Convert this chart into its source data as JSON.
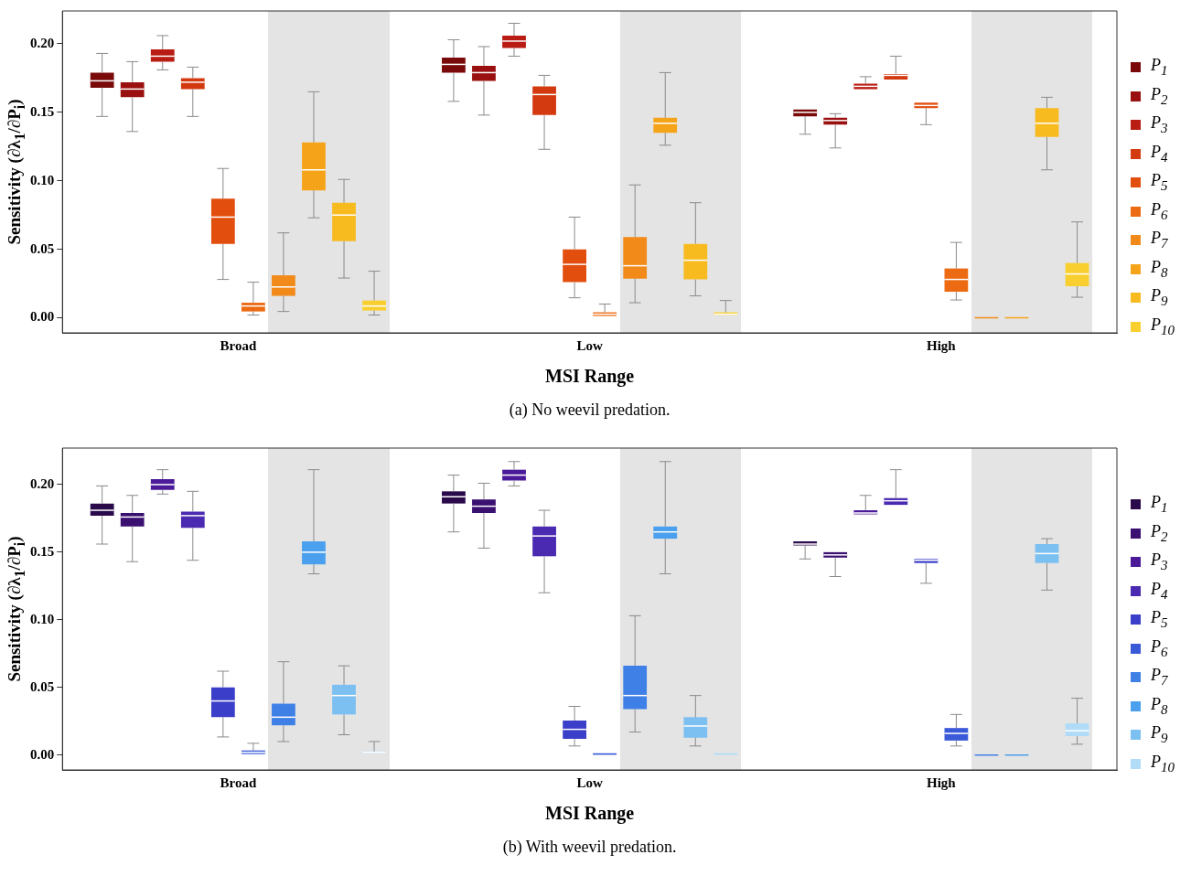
{
  "chart_data": [
    {
      "type": "box",
      "categories": [
        "Broad",
        "Low",
        "High"
      ],
      "xlabel": "MSI Range",
      "ylabel": "Sensitivity (∂λ$_{1}$/∂P$_{i}$)",
      "ylim": [
        -0.011,
        0.224
      ],
      "yticks": [
        {
          "value": 0,
          "label": "0.00"
        },
        {
          "value": 0.05,
          "label": "0.05"
        },
        {
          "value": 0.1,
          "label": "0.10"
        },
        {
          "value": 0.15,
          "label": "0.15"
        },
        {
          "value": 0.2,
          "label": "0.20"
        }
      ],
      "grid": false,
      "legend": "right",
      "annotations": [
        "(a) No weevil predation."
      ],
      "series": [
        {
          "name": "P$_{1}$",
          "color": "#7a0a0a",
          "boxes": [
            {
              "low": 0.147,
              "q1": 0.168,
              "median": 0.173,
              "q3": 0.179,
              "high": 0.193
            },
            {
              "low": 0.158,
              "q1": 0.179,
              "median": 0.185,
              "q3": 0.19,
              "high": 0.203
            },
            {
              "low": 0.134,
              "q1": 0.147,
              "median": 0.15,
              "q3": 0.152,
              "high": 0.152
            }
          ]
        },
        {
          "name": "P$_{2}$",
          "color": "#9a1010",
          "boxes": [
            {
              "low": 0.136,
              "q1": 0.161,
              "median": 0.167,
              "q3": 0.172,
              "high": 0.187
            },
            {
              "low": 0.148,
              "q1": 0.173,
              "median": 0.179,
              "q3": 0.184,
              "high": 0.198
            },
            {
              "low": 0.124,
              "q1": 0.141,
              "median": 0.144,
              "q3": 0.146,
              "high": 0.149
            }
          ]
        },
        {
          "name": "P$_{3}$",
          "color": "#b81c12",
          "boxes": [
            {
              "low": 0.181,
              "q1": 0.187,
              "median": 0.191,
              "q3": 0.196,
              "high": 0.206
            },
            {
              "low": 0.191,
              "q1": 0.197,
              "median": 0.202,
              "q3": 0.206,
              "high": 0.215
            },
            {
              "low": 0.167,
              "q1": 0.167,
              "median": 0.169,
              "q3": 0.171,
              "high": 0.176
            }
          ]
        },
        {
          "name": "P$_{4}$",
          "color": "#d33a10",
          "boxes": [
            {
              "low": 0.147,
              "q1": 0.167,
              "median": 0.172,
              "q3": 0.175,
              "high": 0.183
            },
            {
              "low": 0.123,
              "q1": 0.148,
              "median": 0.163,
              "q3": 0.169,
              "high": 0.177
            },
            {
              "low": 0.173,
              "q1": 0.174,
              "median": 0.177,
              "q3": 0.178,
              "high": 0.191
            }
          ]
        },
        {
          "name": "P$_{5}$",
          "color": "#e24e0e",
          "boxes": [
            {
              "low": 0.028,
              "q1": 0.054,
              "median": 0.0735,
              "q3": 0.087,
              "high": 0.109
            },
            {
              "low": 0.0146,
              "q1": 0.026,
              "median": 0.039,
              "q3": 0.05,
              "high": 0.0735
            },
            {
              "low": 0.141,
              "q1": 0.153,
              "median": 0.155,
              "q3": 0.157,
              "high": 0.158
            }
          ]
        },
        {
          "name": "P$_{6}$",
          "color": "#ec6a12",
          "boxes": [
            {
              "low": 0.002,
              "q1": 0.0046,
              "median": 0.0086,
              "q3": 0.011,
              "high": 0.026
            },
            {
              "low": 0.0013,
              "q1": 0.0013,
              "median": 0.0026,
              "q3": 0.004,
              "high": 0.01
            },
            {
              "low": 0.013,
              "q1": 0.019,
              "median": 0.028,
              "q3": 0.036,
              "high": 0.055
            }
          ]
        },
        {
          "name": "P$_{7}$",
          "color": "#f28a1a",
          "boxes": [
            {
              "low": 0.0046,
              "q1": 0.016,
              "median": 0.0225,
              "q3": 0.031,
              "high": 0.062
            },
            {
              "low": 0.011,
              "q1": 0.0285,
              "median": 0.038,
              "q3": 0.059,
              "high": 0.097
            },
            {
              "low": 0,
              "q1": 0,
              "median": 0,
              "q3": 0,
              "high": 0
            }
          ]
        },
        {
          "name": "P$_{8}$",
          "color": "#f5a41a",
          "boxes": [
            {
              "low": 0.073,
              "q1": 0.093,
              "median": 0.108,
              "q3": 0.128,
              "high": 0.165
            },
            {
              "low": 0.126,
              "q1": 0.135,
              "median": 0.142,
              "q3": 0.146,
              "high": 0.179
            },
            {
              "low": 0,
              "q1": 0,
              "median": 0,
              "q3": 0,
              "high": 0
            }
          ]
        },
        {
          "name": "P$_{9}$",
          "color": "#f7bb20",
          "boxes": [
            {
              "low": 0.029,
              "q1": 0.056,
              "median": 0.075,
              "q3": 0.084,
              "high": 0.101
            },
            {
              "low": 0.016,
              "q1": 0.028,
              "median": 0.042,
              "q3": 0.054,
              "high": 0.084
            },
            {
              "low": 0.108,
              "q1": 0.132,
              "median": 0.142,
              "q3": 0.153,
              "high": 0.161
            }
          ]
        },
        {
          "name": "P$_{10}$",
          "color": "#f9cf30",
          "boxes": [
            {
              "low": 0.002,
              "q1": 0.0053,
              "median": 0.0086,
              "q3": 0.0126,
              "high": 0.034
            },
            {
              "low": 0.002,
              "q1": 0.002,
              "median": 0.0026,
              "q3": 0.004,
              "high": 0.0126
            },
            {
              "low": 0.015,
              "q1": 0.023,
              "median": 0.032,
              "q3": 0.04,
              "high": 0.07
            }
          ]
        }
      ]
    },
    {
      "type": "box",
      "categories": [
        "Broad",
        "Low",
        "High"
      ],
      "xlabel": "MSI Range",
      "ylabel": "Sensitivity (∂λ$_{1}$/∂P$_{i}$)",
      "ylim": [
        -0.011,
        0.227
      ],
      "yticks": [
        {
          "value": 0,
          "label": "0.00"
        },
        {
          "value": 0.05,
          "label": "0.05"
        },
        {
          "value": 0.1,
          "label": "0.10"
        },
        {
          "value": 0.15,
          "label": "0.15"
        },
        {
          "value": 0.2,
          "label": "0.20"
        }
      ],
      "grid": false,
      "legend": "right",
      "annotations": [
        "(b) With weevil predation."
      ],
      "series": [
        {
          "name": "P$_{1}$",
          "color": "#2a0a4a",
          "boxes": [
            {
              "low": 0.156,
              "q1": 0.177,
              "median": 0.181,
              "q3": 0.186,
              "high": 0.199
            },
            {
              "low": 0.165,
              "q1": 0.186,
              "median": 0.191,
              "q3": 0.195,
              "high": 0.207
            },
            {
              "low": 0.145,
              "q1": 0.155,
              "median": 0.156,
              "q3": 0.158,
              "high": 0.159
            }
          ]
        },
        {
          "name": "P$_{2}$",
          "color": "#3a1070",
          "boxes": [
            {
              "low": 0.143,
              "q1": 0.169,
              "median": 0.176,
              "q3": 0.179,
              "high": 0.192
            },
            {
              "low": 0.153,
              "q1": 0.179,
              "median": 0.184,
              "q3": 0.189,
              "high": 0.201
            },
            {
              "low": 0.132,
              "q1": 0.146,
              "median": 0.148,
              "q3": 0.15,
              "high": 0.15
            }
          ]
        },
        {
          "name": "P$_{3}$",
          "color": "#4a1a98",
          "boxes": [
            {
              "low": 0.193,
              "q1": 0.196,
              "median": 0.2,
              "q3": 0.204,
              "high": 0.211
            },
            {
              "low": 0.199,
              "q1": 0.203,
              "median": 0.207,
              "q3": 0.211,
              "high": 0.217
            },
            {
              "low": 0.178,
              "q1": 0.178,
              "median": 0.179,
              "q3": 0.181,
              "high": 0.192
            }
          ]
        },
        {
          "name": "P$_{4}$",
          "color": "#4a2ab0",
          "boxes": [
            {
              "low": 0.144,
              "q1": 0.168,
              "median": 0.177,
              "q3": 0.18,
              "high": 0.195
            },
            {
              "low": 0.12,
              "q1": 0.147,
              "median": 0.162,
              "q3": 0.169,
              "high": 0.181
            },
            {
              "low": 0.184,
              "q1": 0.185,
              "median": 0.188,
              "q3": 0.19,
              "high": 0.211
            }
          ]
        },
        {
          "name": "P$_{5}$",
          "color": "#3b3ec8",
          "boxes": [
            {
              "low": 0.0134,
              "q1": 0.028,
              "median": 0.04,
              "q3": 0.05,
              "high": 0.062
            },
            {
              "low": 0.0067,
              "q1": 0.012,
              "median": 0.019,
              "q3": 0.0255,
              "high": 0.036
            },
            {
              "low": 0.127,
              "q1": 0.142,
              "median": 0.144,
              "q3": 0.145,
              "high": 0.146
            }
          ]
        },
        {
          "name": "P$_{6}$",
          "color": "#3a5ad8",
          "boxes": [
            {
              "low": 0,
              "q1": 0.0007,
              "median": 0.002,
              "q3": 0.0034,
              "high": 0.0087
            },
            {
              "low": 0,
              "q1": 0.0007,
              "median": 0.0007,
              "q3": 0.0013,
              "high": 0.002
            },
            {
              "low": 0.0067,
              "q1": 0.0107,
              "median": 0.016,
              "q3": 0.02,
              "high": 0.03
            }
          ]
        },
        {
          "name": "P$_{7}$",
          "color": "#3f80e6",
          "boxes": [
            {
              "low": 0.01,
              "q1": 0.022,
              "median": 0.028,
              "q3": 0.038,
              "high": 0.069
            },
            {
              "low": 0.017,
              "q1": 0.034,
              "median": 0.044,
              "q3": 0.066,
              "high": 0.103
            },
            {
              "low": 0,
              "q1": 0,
              "median": 0,
              "q3": 0,
              "high": 0
            }
          ]
        },
        {
          "name": "P$_{8}$",
          "color": "#4aa0ee",
          "boxes": [
            {
              "low": 0.134,
              "q1": 0.141,
              "median": 0.15,
              "q3": 0.158,
              "high": 0.211
            },
            {
              "low": 0.134,
              "q1": 0.16,
              "median": 0.165,
              "q3": 0.169,
              "high": 0.217
            },
            {
              "low": 0,
              "q1": 0,
              "median": 0,
              "q3": 0,
              "high": 0
            }
          ]
        },
        {
          "name": "P$_{9}$",
          "color": "#7cc0f2",
          "boxes": [
            {
              "low": 0.015,
              "q1": 0.03,
              "median": 0.044,
              "q3": 0.052,
              "high": 0.066
            },
            {
              "low": 0.0067,
              "q1": 0.0128,
              "median": 0.0215,
              "q3": 0.028,
              "high": 0.044
            },
            {
              "low": 0.122,
              "q1": 0.142,
              "median": 0.149,
              "q3": 0.156,
              "high": 0.16
            }
          ]
        },
        {
          "name": "P$_{10}$",
          "color": "#b0dcf8",
          "boxes": [
            {
              "low": 0.0013,
              "q1": 0.0013,
              "median": 0.002,
              "q3": 0.0027,
              "high": 0.01
            },
            {
              "low": 0,
              "q1": 0.0007,
              "median": 0.0007,
              "q3": 0.0013,
              "high": 0.0013
            },
            {
              "low": 0.008,
              "q1": 0.014,
              "median": 0.018,
              "q3": 0.0235,
              "high": 0.042
            }
          ]
        }
      ]
    }
  ]
}
